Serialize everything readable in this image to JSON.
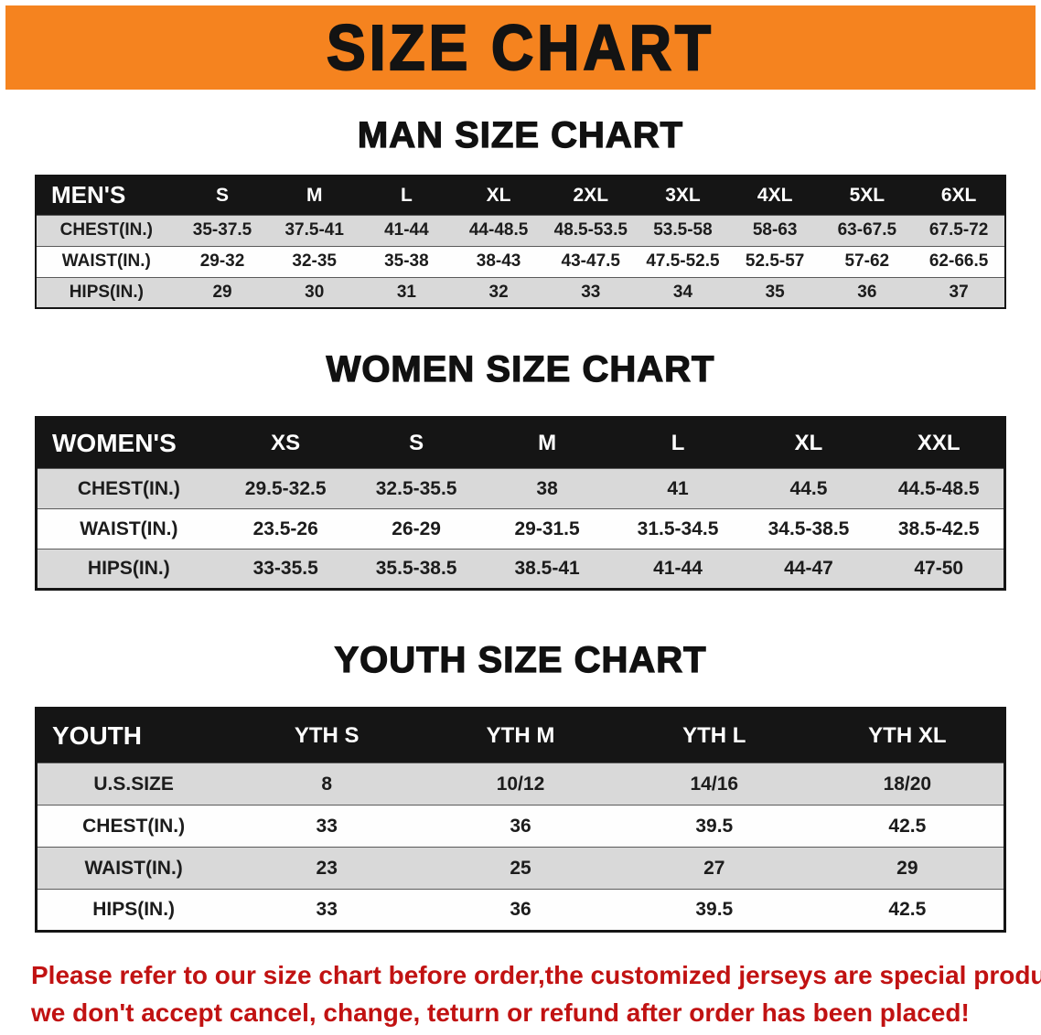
{
  "banner": {
    "title": "SIZE CHART"
  },
  "sections": [
    {
      "heading": "MAN SIZE CHART",
      "table": {
        "header": [
          "MEN'S",
          "S",
          "M",
          "L",
          "XL",
          "2XL",
          "3XL",
          "4XL",
          "5XL",
          "6XL"
        ],
        "rows": [
          {
            "label": "CHEST(IN.)",
            "values": [
              "35-37.5",
              "37.5-41",
              "41-44",
              "44-48.5",
              "48.5-53.5",
              "53.5-58",
              "58-63",
              "63-67.5",
              "67.5-72"
            ]
          },
          {
            "label": "WAIST(IN.)",
            "values": [
              "29-32",
              "32-35",
              "35-38",
              "38-43",
              "43-47.5",
              "47.5-52.5",
              "52.5-57",
              "57-62",
              "62-66.5"
            ]
          },
          {
            "label": "HIPS(IN.)",
            "values": [
              "29",
              "30",
              "31",
              "32",
              "33",
              "34",
              "35",
              "36",
              "37"
            ]
          }
        ]
      }
    },
    {
      "heading": "WOMEN SIZE CHART",
      "table": {
        "header": [
          "WOMEN'S",
          "XS",
          "S",
          "M",
          "L",
          "XL",
          "XXL"
        ],
        "rows": [
          {
            "label": "CHEST(IN.)",
            "values": [
              "29.5-32.5",
              "32.5-35.5",
              "38",
              "41",
              "44.5",
              "44.5-48.5"
            ]
          },
          {
            "label": "WAIST(IN.)",
            "values": [
              "23.5-26",
              "26-29",
              "29-31.5",
              "31.5-34.5",
              "34.5-38.5",
              "38.5-42.5"
            ]
          },
          {
            "label": "HIPS(IN.)",
            "values": [
              "33-35.5",
              "35.5-38.5",
              "38.5-41",
              "41-44",
              "44-47",
              "47-50"
            ]
          }
        ]
      }
    },
    {
      "heading": "YOUTH SIZE CHART",
      "table": {
        "header": [
          "YOUTH",
          "YTH S",
          "YTH M",
          "YTH L",
          "YTH XL"
        ],
        "rows": [
          {
            "label": "U.S.SIZE",
            "values": [
              "8",
              "10/12",
              "14/16",
              "18/20"
            ]
          },
          {
            "label": "CHEST(IN.)",
            "values": [
              "33",
              "36",
              "39.5",
              "42.5"
            ]
          },
          {
            "label": "WAIST(IN.)",
            "values": [
              "23",
              "25",
              "27",
              "29"
            ]
          },
          {
            "label": "HIPS(IN.)",
            "values": [
              "33",
              "36",
              "39.5",
              "42.5"
            ]
          }
        ]
      }
    }
  ],
  "footer": {
    "line1": "Please refer to our size chart before order,the customized jerseys are special products,",
    "line2": "we don't accept cancel, change, teturn or refund after order has been placed!"
  },
  "colors": {
    "banner_orange": "#f5831f",
    "header_black": "#151515",
    "stripe_gray": "#d9d9d9",
    "footer_red": "#c11212"
  }
}
